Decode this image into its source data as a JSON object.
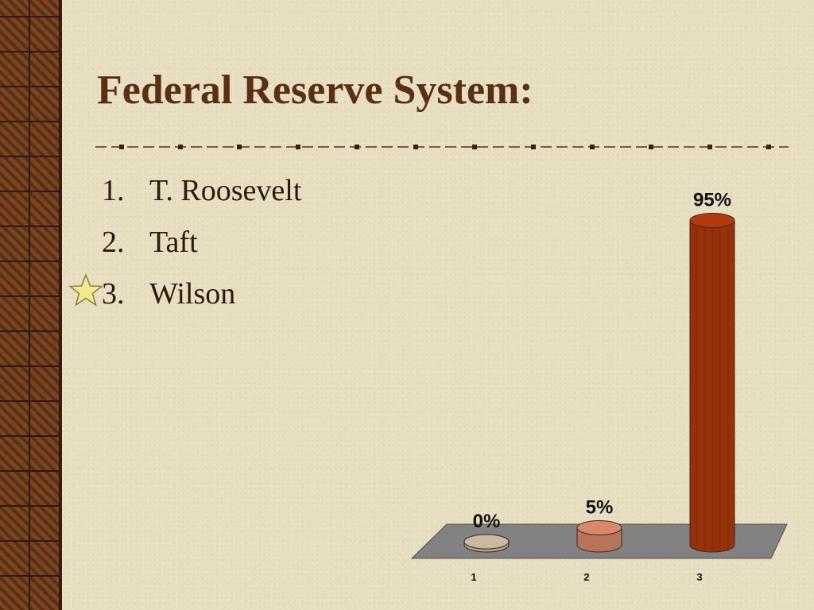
{
  "slide": {
    "title": "Federal Reserve System:",
    "options": [
      {
        "number": "1.",
        "label": "T. Roosevelt"
      },
      {
        "number": "2.",
        "label": "Taft"
      },
      {
        "number": "3.",
        "label": "Wilson",
        "correct": true
      }
    ],
    "correct_marker_icon": "star-icon"
  },
  "chart_data": {
    "type": "bar",
    "categories": [
      "1",
      "2",
      "3"
    ],
    "values": [
      0,
      5,
      95
    ],
    "data_labels": [
      "0%",
      "5%",
      "95%"
    ],
    "unit": "%",
    "ylim": [
      0,
      100
    ],
    "grid": false,
    "colors": [
      "#c9b9a0",
      "#d9896a",
      "#b23a0c"
    ]
  }
}
